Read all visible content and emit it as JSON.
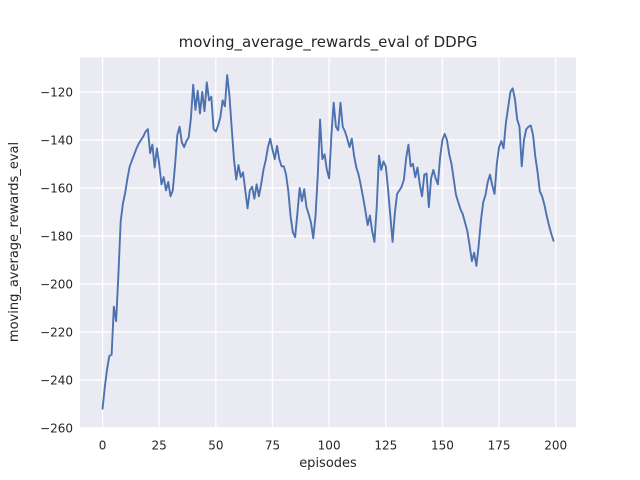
{
  "figure": {
    "title": "moving_average_rewards_eval of DDPG",
    "xlabel": "episodes",
    "ylabel": "moving_average_rewards_eval"
  },
  "chart_data": {
    "type": "line",
    "title": "moving_average_rewards_eval of DDPG",
    "xlabel": "episodes",
    "ylabel": "moving_average_rewards_eval",
    "grid": true,
    "legend": null,
    "xlim": [
      -9.95,
      208.95
    ],
    "ylim": [
      -259.7,
      -105.7
    ],
    "xticks": {
      "values": [
        0,
        25,
        50,
        75,
        100,
        125,
        150,
        175,
        200
      ],
      "labels": [
        "0",
        "25",
        "50",
        "75",
        "100",
        "125",
        "150",
        "175",
        "200"
      ]
    },
    "yticks": {
      "values": [
        -260,
        -240,
        -220,
        -200,
        -180,
        -160,
        -140,
        -120
      ],
      "labels": [
        "−260",
        "−240",
        "−220",
        "−200",
        "−180",
        "−160",
        "−140",
        "−120"
      ]
    },
    "style": {
      "axes_bg": "#EAEAF2",
      "grid_color": "#FFFFFF",
      "text_color": "#262626",
      "line_color": "#4C72B0",
      "line_width": 1.9,
      "grid_width": 1.3
    },
    "series": [
      {
        "name": "moving_average_rewards_eval",
        "color": "#4C72B0",
        "x_start": 0,
        "x_step": 1,
        "values": [
          -252,
          -243,
          -235.5,
          -230,
          -229.5,
          -209.5,
          -215.5,
          -196,
          -174,
          -166.5,
          -162,
          -156,
          -151,
          -148.5,
          -146,
          -143.5,
          -141.5,
          -140,
          -138.5,
          -136.5,
          -135.5,
          -145.5,
          -142,
          -151.5,
          -143.5,
          -150,
          -158.5,
          -155.5,
          -161,
          -157.5,
          -163.5,
          -161,
          -150.5,
          -138,
          -134.5,
          -141,
          -143,
          -140.5,
          -139,
          -131,
          -117,
          -127.5,
          -119.5,
          -129,
          -120,
          -128,
          -116,
          -123.5,
          -122,
          -135.5,
          -136.5,
          -134,
          -130.5,
          -123.5,
          -126,
          -113,
          -121.5,
          -135,
          -148,
          -156.5,
          -150.5,
          -155.5,
          -153.5,
          -161,
          -168.5,
          -161,
          -159.5,
          -164.5,
          -158.5,
          -163.5,
          -158.5,
          -152.5,
          -148.5,
          -143,
          -139.5,
          -144,
          -148,
          -142.5,
          -148,
          -151,
          -151,
          -154.5,
          -161.5,
          -172,
          -178.5,
          -180.5,
          -170.5,
          -160,
          -165.5,
          -160.5,
          -168,
          -171,
          -174.5,
          -181,
          -171.5,
          -154.5,
          -131.5,
          -148,
          -146,
          -152.5,
          -156,
          -138,
          -124.5,
          -134.5,
          -136,
          -124.5,
          -134.5,
          -136.5,
          -139.5,
          -143,
          -139.5,
          -146.5,
          -151.5,
          -154.5,
          -159,
          -164,
          -169.5,
          -175.5,
          -171.5,
          -178,
          -182.5,
          -168,
          -146.5,
          -152.5,
          -149,
          -151,
          -160.5,
          -171.5,
          -182.5,
          -170.5,
          -162.5,
          -161,
          -159.5,
          -156.5,
          -147.5,
          -142,
          -151,
          -150,
          -155.5,
          -151.5,
          -158.5,
          -163.5,
          -154.5,
          -154,
          -168,
          -156,
          -152.5,
          -156,
          -158.5,
          -147,
          -140,
          -137.5,
          -140,
          -146,
          -150,
          -156.5,
          -163,
          -166,
          -169,
          -171,
          -174.5,
          -178,
          -184,
          -190.5,
          -187,
          -192.5,
          -184,
          -173.5,
          -166,
          -163,
          -157.5,
          -154.5,
          -159,
          -162.5,
          -150,
          -143,
          -140.5,
          -143.5,
          -133,
          -126.5,
          -120,
          -118.5,
          -123,
          -131.5,
          -134.5,
          -151,
          -140,
          -135.5,
          -134.5,
          -134,
          -138,
          -147,
          -153.5,
          -161.5,
          -163.5,
          -167,
          -171.5,
          -175.5,
          -179,
          -182
        ]
      }
    ]
  }
}
